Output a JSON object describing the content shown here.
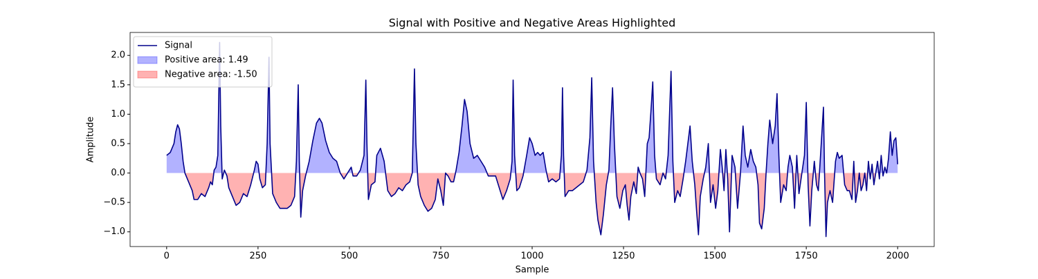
{
  "chart_data": {
    "type": "line",
    "title": "Signal with Positive and Negative Areas Highlighted",
    "xlabel": "Sample",
    "ylabel": "Amplitude",
    "x": [
      0,
      10,
      20,
      25,
      30,
      35,
      40,
      45,
      50,
      60,
      70,
      75,
      85,
      95,
      105,
      115,
      120,
      125,
      130,
      135,
      140,
      145,
      148,
      152,
      158,
      165,
      170,
      180,
      190,
      200,
      210,
      220,
      230,
      240,
      245,
      250,
      255,
      262,
      270,
      275,
      280,
      283,
      290,
      300,
      310,
      330,
      340,
      350,
      355,
      360,
      363,
      367,
      372,
      380,
      390,
      400,
      410,
      418,
      425,
      435,
      445,
      455,
      465,
      475,
      485,
      495,
      505,
      510,
      520,
      530,
      540,
      545,
      548,
      552,
      560,
      570,
      575,
      585,
      595,
      605,
      615,
      625,
      635,
      645,
      655,
      665,
      672,
      678,
      682,
      688,
      695,
      705,
      715,
      725,
      735,
      742,
      750,
      757,
      763,
      770,
      778,
      785,
      792,
      800,
      808,
      815,
      822,
      830,
      840,
      850,
      860,
      870,
      880,
      890,
      900,
      910,
      920,
      930,
      940,
      945,
      948,
      952,
      958,
      965,
      975,
      985,
      993,
      1000,
      1008,
      1015,
      1022,
      1030,
      1038,
      1045,
      1055,
      1065,
      1075,
      1080,
      1083,
      1086,
      1090,
      1100,
      1110,
      1120,
      1130,
      1140,
      1150,
      1158,
      1163,
      1168,
      1175,
      1180,
      1188,
      1195,
      1203,
      1210,
      1215,
      1220,
      1225,
      1232,
      1240,
      1248,
      1255,
      1260,
      1265,
      1270,
      1278,
      1285,
      1290,
      1295,
      1302,
      1308,
      1315,
      1320,
      1325,
      1330,
      1335,
      1340,
      1350,
      1358,
      1365,
      1372,
      1380,
      1385,
      1390,
      1398,
      1405,
      1413,
      1420,
      1425,
      1432,
      1438,
      1445,
      1450,
      1455,
      1460,
      1468,
      1475,
      1482,
      1488,
      1495,
      1502,
      1508,
      1515,
      1520,
      1525,
      1530,
      1535,
      1540,
      1547,
      1555,
      1562,
      1570,
      1577,
      1583,
      1590,
      1598,
      1605,
      1612,
      1618,
      1622,
      1628,
      1635,
      1640,
      1645,
      1650,
      1658,
      1665,
      1670,
      1675,
      1680,
      1688,
      1695,
      1700,
      1705,
      1712,
      1718,
      1724,
      1730,
      1738,
      1745,
      1750,
      1755,
      1760,
      1765,
      1772,
      1778,
      1783,
      1790,
      1797,
      1800,
      1804,
      1808,
      1815,
      1822,
      1830,
      1835,
      1840,
      1848,
      1855,
      1862,
      1868,
      1875,
      1880,
      1885,
      1890,
      1895,
      1900,
      1905,
      1910,
      1915,
      1920,
      1925,
      1930,
      1935,
      1940,
      1945,
      1950,
      1955,
      1960,
      1965,
      1970,
      1975,
      1980,
      1985,
      1990,
      1995,
      2000
    ],
    "series": [
      {
        "name": "Signal",
        "color": "#00008b",
        "values": [
          0.3,
          0.35,
          0.5,
          0.7,
          0.82,
          0.75,
          0.5,
          0.2,
          0.0,
          -0.15,
          -0.3,
          -0.45,
          -0.45,
          -0.35,
          -0.4,
          -0.25,
          -0.15,
          -0.2,
          0.05,
          0.1,
          0.3,
          2.22,
          0.8,
          -0.1,
          0.05,
          -0.05,
          -0.25,
          -0.4,
          -0.55,
          -0.5,
          -0.35,
          -0.4,
          -0.2,
          0.05,
          0.2,
          0.15,
          -0.1,
          -0.25,
          -0.2,
          0.5,
          1.97,
          0.5,
          -0.35,
          -0.5,
          -0.6,
          -0.6,
          -0.55,
          -0.4,
          0.2,
          1.5,
          0.2,
          -0.75,
          -0.3,
          -0.05,
          0.2,
          0.55,
          0.85,
          0.93,
          0.85,
          0.55,
          0.35,
          0.25,
          0.2,
          0.0,
          -0.1,
          0.0,
          0.1,
          -0.05,
          -0.05,
          0.05,
          0.3,
          1.58,
          0.5,
          -0.45,
          -0.2,
          -0.15,
          0.3,
          0.42,
          0.2,
          -0.3,
          -0.4,
          -0.35,
          -0.25,
          -0.3,
          -0.2,
          -0.15,
          0.0,
          1.77,
          0.5,
          -0.2,
          -0.4,
          -0.55,
          -0.65,
          -0.6,
          -0.45,
          -0.1,
          -0.3,
          -0.55,
          0.0,
          -0.05,
          -0.15,
          -0.15,
          0.05,
          0.35,
          0.8,
          1.25,
          1.05,
          0.5,
          0.25,
          0.3,
          0.2,
          0.1,
          -0.05,
          -0.05,
          -0.05,
          -0.25,
          -0.45,
          -0.3,
          -0.1,
          0.2,
          1.58,
          0.3,
          -0.3,
          -0.25,
          -0.05,
          0.3,
          0.6,
          0.5,
          0.3,
          0.35,
          0.3,
          0.35,
          0.05,
          -0.15,
          -0.1,
          -0.15,
          -0.1,
          0.3,
          1.45,
          0.3,
          -0.4,
          -0.3,
          -0.3,
          -0.25,
          -0.2,
          -0.15,
          0.05,
          0.6,
          1.62,
          0.2,
          -0.5,
          -0.8,
          -1.05,
          -0.7,
          -0.2,
          0.05,
          0.8,
          1.45,
          0.5,
          -0.4,
          -0.6,
          -0.3,
          -0.2,
          -0.55,
          -0.8,
          -0.4,
          -0.15,
          -0.35,
          0.1,
          0.0,
          -0.1,
          -0.4,
          0.5,
          0.6,
          1.05,
          1.55,
          0.3,
          -0.1,
          -0.2,
          0.0,
          -0.1,
          0.3,
          1.73,
          0.2,
          -0.5,
          -0.3,
          -0.4,
          -0.1,
          0.2,
          0.45,
          0.8,
          0.2,
          -0.2,
          -0.65,
          -1.05,
          -0.4,
          -0.1,
          0.1,
          0.5,
          -0.5,
          -0.2,
          -0.6,
          -0.3,
          0.4,
          0.1,
          -0.3,
          0.4,
          -0.1,
          -1.0,
          0.3,
          0.1,
          -0.6,
          0.0,
          0.8,
          0.3,
          0.1,
          0.4,
          0.2,
          0.1,
          -0.2,
          -0.85,
          -0.95,
          -0.6,
          0.0,
          0.5,
          0.9,
          0.5,
          0.8,
          1.35,
          0.3,
          -0.5,
          -0.2,
          -0.3,
          0.1,
          0.3,
          0.1,
          -0.6,
          0.3,
          -0.35,
          0.0,
          0.3,
          1.2,
          -0.2,
          -0.9,
          -0.3,
          0.2,
          -0.2,
          -0.3,
          0.4,
          1.12,
          0.0,
          -1.08,
          -0.5,
          -0.3,
          -0.5,
          0.2,
          0.35,
          0.25,
          0.3,
          -0.2,
          -0.3,
          -0.3,
          -0.45,
          0.2,
          -0.5,
          -0.3,
          0.0,
          -0.3,
          -0.2,
          0.0,
          -0.3,
          0.2,
          -0.1,
          0.15,
          -0.2,
          0.0,
          0.2,
          -0.1,
          0.3,
          -0.05,
          0.1,
          0.0,
          0.25,
          0.7,
          0.3,
          0.55,
          0.6,
          0.15
        ]
      }
    ],
    "fills": [
      {
        "name": "Positive area: 1.49",
        "color": "#0000ff"
      },
      {
        "name": "Negative area: -1.50",
        "color": "#ff0000"
      }
    ],
    "xlim": [
      -100,
      2100
    ],
    "ylim": [
      -1.25,
      2.39
    ],
    "xticks": [
      0,
      250,
      500,
      750,
      1000,
      1250,
      1500,
      1750,
      2000
    ],
    "yticks": [
      {
        "value": -1,
        "label": "−1.0"
      },
      {
        "value": -0.5,
        "label": "−0.5"
      },
      {
        "value": 0,
        "label": "0.0"
      },
      {
        "value": 0.5,
        "label": "0.5"
      },
      {
        "value": 1,
        "label": "1.0"
      },
      {
        "value": 1.5,
        "label": "1.5"
      },
      {
        "value": 2,
        "label": "2.0"
      }
    ],
    "legend": "upper left",
    "grid": false
  }
}
